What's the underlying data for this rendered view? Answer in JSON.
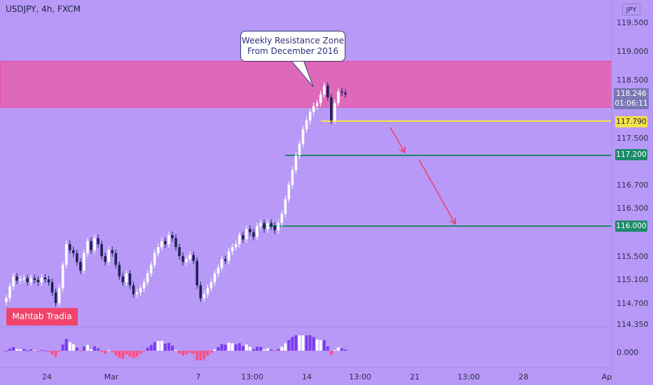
{
  "header": {
    "symbol_text": "USDJPY, 4h, FXCM"
  },
  "currency_label": "JPY",
  "annotation": {
    "line1": "Weekly Resistance Zone",
    "line2": "From December 2016"
  },
  "watermark": "Mahtab Tradia",
  "current_price": {
    "price": "118.246",
    "countdown": "01:06:11"
  },
  "colors": {
    "background": "#b899f7",
    "resistance_zone": "#de69bb",
    "bull_candle": "#ffffff",
    "bear_candle": "#1f2257",
    "support_yellow": "#f5e048",
    "level_green": "#1d8a6a",
    "arrow": "#f23c66",
    "hist_up": "#ffffff",
    "hist_up_strong": "#7b3cf0",
    "hist_down": "#ff4f86"
  },
  "chart_data": {
    "type": "candlestick",
    "symbol": "USDJPY",
    "timeframe": "4h",
    "y_ticks": [
      "119.500",
      "119.000",
      "118.500",
      "117.500",
      "116.700",
      "116.300",
      "115.500",
      "115.100",
      "114.700",
      "114.350"
    ],
    "x_ticks": [
      "24",
      "Mar",
      "7",
      "13:00",
      "14",
      "13:00",
      "21",
      "13:00",
      "28",
      "Ap"
    ],
    "y_range": [
      114.2,
      119.8
    ],
    "resistance_zone": [
      118.1,
      118.65
    ],
    "levels": [
      {
        "value": 117.79,
        "label": "117.790",
        "color": "yellow"
      },
      {
        "value": 117.2,
        "label": "117.200",
        "color": "green"
      },
      {
        "value": 116.0,
        "label": "116.000",
        "color": "green"
      }
    ],
    "oscillator_zero_label": "0.000",
    "candles_close": [
      114.78,
      114.98,
      115.15,
      115.08,
      115.1,
      115.12,
      115.05,
      115.12,
      115.09,
      115.05,
      115.13,
      115.1,
      115.05,
      114.88,
      114.7,
      114.95,
      115.35,
      115.7,
      115.6,
      115.55,
      115.4,
      115.25,
      115.55,
      115.75,
      115.6,
      115.8,
      115.7,
      115.5,
      115.4,
      115.6,
      115.55,
      115.35,
      115.15,
      115.05,
      115.2,
      115.0,
      114.85,
      114.88,
      114.95,
      115.05,
      115.2,
      115.35,
      115.55,
      115.65,
      115.75,
      115.7,
      115.85,
      115.8,
      115.65,
      115.5,
      115.4,
      115.45,
      115.52,
      115.42,
      115.0,
      114.78,
      114.85,
      114.95,
      115.05,
      115.2,
      115.3,
      115.45,
      115.42,
      115.58,
      115.65,
      115.7,
      115.85,
      115.78,
      115.95,
      115.9,
      115.82,
      116.0,
      116.05,
      115.95,
      116.05,
      116.0,
      115.93,
      116.05,
      116.2,
      116.45,
      116.7,
      116.95,
      117.2,
      117.4,
      117.65,
      117.8,
      117.95,
      118.05,
      118.1,
      118.25,
      118.4,
      118.2,
      117.8,
      118.1,
      118.3,
      118.28,
      118.25
    ]
  }
}
